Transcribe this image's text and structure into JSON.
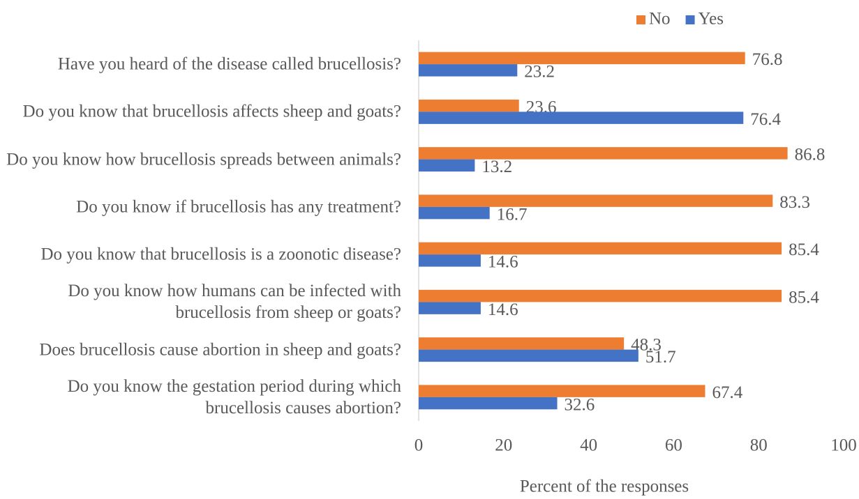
{
  "chart_data": {
    "type": "bar",
    "orientation": "horizontal",
    "xlabel": "Percent of the responses",
    "categories": [
      "Have you heard of the disease called brucellosis?",
      "Do you know that brucellosis affects sheep and goats?",
      "Do you know how brucellosis spreads  between animals?",
      "Do you know if brucellosis has any treatment?",
      "Do you know that brucellosis is a zoonotic disease?",
      "Do you know how humans can be infected with brucellosis from sheep or goats?",
      "Does brucellosis cause abortion in sheep and goats?",
      "Do you know the gestation period during which brucellosis causes abortion?"
    ],
    "series": [
      {
        "name": "No",
        "color": "#ed7d31",
        "values": [
          76.8,
          23.6,
          86.8,
          83.3,
          85.4,
          85.4,
          48.3,
          67.4
        ]
      },
      {
        "name": "Yes",
        "color": "#4472c4",
        "values": [
          23.2,
          76.4,
          13.2,
          16.7,
          14.6,
          14.6,
          51.7,
          32.6
        ]
      }
    ],
    "xlim": [
      0,
      100
    ],
    "xticks": [
      0,
      20,
      40,
      60,
      80,
      100
    ],
    "grid": false,
    "legend": "top"
  }
}
